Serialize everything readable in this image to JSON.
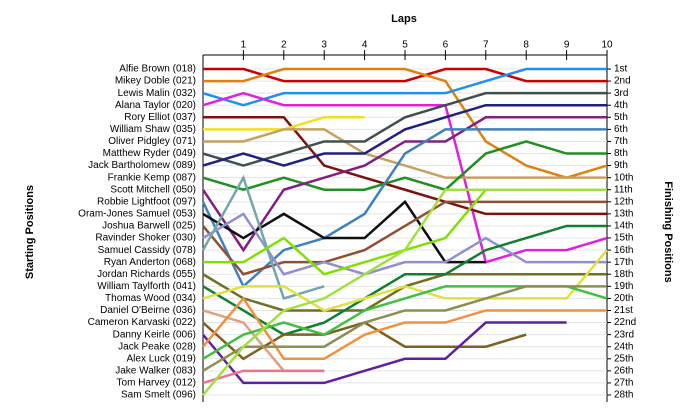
{
  "chart_data": {
    "type": "line",
    "title": "Laps",
    "ylabel": "Starting Positions",
    "y2label": "Finishing Positions",
    "x": [
      0,
      1,
      2,
      3,
      4,
      5,
      6,
      7,
      8,
      9,
      10
    ],
    "xlim": [
      0,
      10
    ],
    "xticks": [
      1,
      2,
      3,
      4,
      5,
      6,
      7,
      8,
      9,
      10
    ],
    "ylim": [
      1,
      28
    ],
    "y_reversed": true,
    "grid": true,
    "y2ticks": [
      {
        "value": 1,
        "label": "1st"
      },
      {
        "value": 2,
        "label": "2nd"
      },
      {
        "value": 3,
        "label": "3rd"
      },
      {
        "value": 4,
        "label": "4th"
      },
      {
        "value": 5,
        "label": "5th"
      },
      {
        "value": 6,
        "label": "6th"
      },
      {
        "value": 7,
        "label": "7th"
      },
      {
        "value": 8,
        "label": "8th"
      },
      {
        "value": 9,
        "label": "9th"
      },
      {
        "value": 10,
        "label": "10th"
      },
      {
        "value": 11,
        "label": "11th"
      },
      {
        "value": 12,
        "label": "12th"
      },
      {
        "value": 13,
        "label": "13th"
      },
      {
        "value": 14,
        "label": "14th"
      },
      {
        "value": 15,
        "label": "15th"
      },
      {
        "value": 16,
        "label": "16th"
      },
      {
        "value": 17,
        "label": "17th"
      },
      {
        "value": 18,
        "label": "18th"
      },
      {
        "value": 19,
        "label": "19th"
      },
      {
        "value": 20,
        "label": "20th"
      },
      {
        "value": 21,
        "label": "21st"
      },
      {
        "value": 22,
        "label": "22nd"
      },
      {
        "value": 23,
        "label": "23rd"
      },
      {
        "value": 24,
        "label": "24th"
      },
      {
        "value": 25,
        "label": "25th"
      },
      {
        "value": 26,
        "label": "26th"
      },
      {
        "value": 27,
        "label": "27th"
      },
      {
        "value": 28,
        "label": "28th"
      }
    ],
    "series": [
      {
        "name": "Alfie Brown (018)",
        "color": "#cc0000",
        "values": [
          1,
          1,
          2,
          2,
          2,
          2,
          1,
          1,
          2,
          2,
          2
        ]
      },
      {
        "name": "Mikey Doble (021)",
        "color": "#e08010",
        "values": [
          2,
          2,
          1,
          1,
          1,
          1,
          2,
          7,
          9,
          10,
          9
        ]
      },
      {
        "name": "Lewis Malin (032)",
        "color": "#2090f0",
        "values": [
          3,
          4,
          3,
          3,
          3,
          3,
          3,
          2,
          1,
          1,
          1
        ]
      },
      {
        "name": "Alana Taylor (020)",
        "color": "#e020e0",
        "values": [
          4,
          3,
          4,
          4,
          4,
          4,
          4,
          17,
          16,
          16,
          15
        ]
      },
      {
        "name": "Rory Elliot (037)",
        "color": "#801010",
        "values": [
          5,
          5,
          5,
          9,
          10,
          11,
          12,
          13,
          13,
          13,
          13
        ]
      },
      {
        "name": "William Shaw (035)",
        "color": "#f0e020",
        "values": [
          6,
          6,
          6,
          5,
          5,
          null,
          null,
          null,
          null,
          null,
          null
        ]
      },
      {
        "name": "Oliver Pidgley (071)",
        "color": "#c8a060",
        "values": [
          7,
          7,
          6,
          6,
          8,
          9,
          10,
          10,
          10,
          10,
          10
        ]
      },
      {
        "name": "Matthew Ryder (049)",
        "color": "#405050",
        "values": [
          8,
          9,
          8,
          7,
          7,
          5,
          4,
          3,
          3,
          3,
          3
        ]
      },
      {
        "name": "Jack Bartholomew (089)",
        "color": "#202080",
        "values": [
          9,
          8,
          9,
          8,
          8,
          6,
          5,
          4,
          4,
          4,
          4
        ]
      },
      {
        "name": "Frankie Kemp (087)",
        "color": "#209020",
        "values": [
          10,
          11,
          10,
          11,
          11,
          10,
          11,
          8,
          7,
          8,
          8
        ]
      },
      {
        "name": "Scott Mitchell (050)",
        "color": "#802080",
        "values": [
          11,
          16,
          11,
          10,
          9,
          7,
          7,
          5,
          5,
          5,
          5
        ]
      },
      {
        "name": "Robbie Lightfoot (097)",
        "color": "#4080c0",
        "values": [
          12,
          19,
          16,
          15,
          13,
          8,
          6,
          6,
          6,
          6,
          6
        ]
      },
      {
        "name": "Oram-Jones Samuel (053)",
        "color": "#101010",
        "values": [
          13,
          15,
          13,
          15,
          15,
          12,
          17,
          17,
          null,
          null,
          null
        ]
      },
      {
        "name": "Joshua Barwell (025)",
        "color": "#905030",
        "values": [
          14,
          18,
          17,
          17,
          16,
          14,
          12,
          12,
          12,
          12,
          12
        ]
      },
      {
        "name": "Ravinder Shoker (030)",
        "color": "#9090d0",
        "values": [
          15,
          13,
          18,
          17,
          18,
          17,
          17,
          15,
          17,
          17,
          17
        ]
      },
      {
        "name": "Samuel Cassidy (078)",
        "color": "#70a8a8",
        "values": [
          16,
          10,
          20,
          19,
          null,
          null,
          null,
          null,
          null,
          null,
          null
        ]
      },
      {
        "name": "Ryan Anderton (068)",
        "color": "#80e000",
        "values": [
          17,
          17,
          15,
          18,
          17,
          16,
          15,
          11,
          11,
          11,
          11
        ]
      },
      {
        "name": "Jordan Richards (055)",
        "color": "#707020",
        "values": [
          18,
          20,
          21,
          21,
          21,
          19,
          18,
          18,
          18,
          18,
          18
        ]
      },
      {
        "name": "William Taylforth (041)",
        "color": "#108030",
        "values": [
          19,
          21,
          23,
          22,
          20,
          18,
          18,
          16,
          15,
          14,
          14
        ]
      },
      {
        "name": "Thomas Wood (034)",
        "color": "#e0e040",
        "values": [
          20,
          19,
          19,
          21,
          20,
          19,
          20,
          20,
          20,
          20,
          16
        ]
      },
      {
        "name": "Daniel O'Beirne (036)",
        "color": "#e0a080",
        "values": [
          21,
          22,
          26,
          26,
          null,
          null,
          null,
          null,
          null,
          null,
          null
        ]
      },
      {
        "name": "Cameron Karvaski (022)",
        "color": "#806020",
        "values": [
          22,
          25,
          23,
          23,
          22,
          24,
          24,
          24,
          23,
          null,
          null
        ]
      },
      {
        "name": "Danny Keirle (006)",
        "color": "#6020a0",
        "values": [
          23,
          27,
          27,
          27,
          26,
          25,
          25,
          22,
          22,
          22,
          null
        ]
      },
      {
        "name": "Jack Peake (028)",
        "color": "#f09040",
        "values": [
          24,
          20,
          25,
          25,
          23,
          22,
          22,
          21,
          21,
          21,
          21
        ]
      },
      {
        "name": "Alex Luck (019)",
        "color": "#40c040",
        "values": [
          25,
          23,
          22,
          23,
          21,
          20,
          19,
          19,
          19,
          19,
          20
        ]
      },
      {
        "name": "Jake Walker (083)",
        "color": "#8a9050",
        "values": [
          26,
          24,
          24,
          24,
          22,
          21,
          21,
          20,
          19,
          19,
          19
        ]
      },
      {
        "name": "Tom Harvey (012)",
        "color": "#f07090",
        "values": [
          27,
          26,
          26,
          26,
          null,
          null,
          null,
          null,
          null,
          null,
          null
        ]
      },
      {
        "name": "Sam Smelt (096)",
        "color": "#a0e040",
        "values": [
          28,
          24,
          21,
          20,
          18,
          16,
          11,
          11,
          11,
          11,
          11
        ]
      }
    ]
  }
}
